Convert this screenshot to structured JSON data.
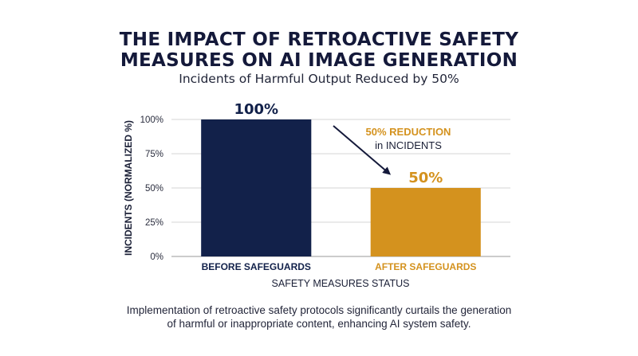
{
  "chart_data": {
    "type": "bar",
    "title_lines": [
      "THE IMPACT OF RETROACTIVE SAFETY",
      "MEASURES ON AI IMAGE GENERATION"
    ],
    "subtitle": "Incidents of Harmful Output Reduced by 50%",
    "categories": [
      "BEFORE SAFEGUARDS",
      "AFTER SAFEGUARDS"
    ],
    "values": [
      100,
      50
    ],
    "data_labels": [
      "100%",
      "50%"
    ],
    "colors": [
      "#12214a",
      "#d4921e"
    ],
    "category_label_colors": [
      "#12214a",
      "#d4921e"
    ],
    "xlabel": "SAFETY MEASURES STATUS",
    "ylabel": "INCIDENTS (NORMALIZED %)",
    "ylim": [
      0,
      100
    ],
    "yticks": [
      0,
      25,
      50,
      75,
      100
    ],
    "ytick_labels": [
      "0%",
      "25%",
      "50%",
      "75%",
      "100%"
    ],
    "grid": true,
    "annotation": {
      "line1_highlight": "50% REDUCTION",
      "line2": "in INCIDENTS",
      "highlight_color": "#d4921e"
    }
  },
  "caption_lines": [
    "Implementation of retroactive safety protocols significantly curtails the generation",
    "of harmful or inappropriate content, enhancing AI system safety."
  ]
}
